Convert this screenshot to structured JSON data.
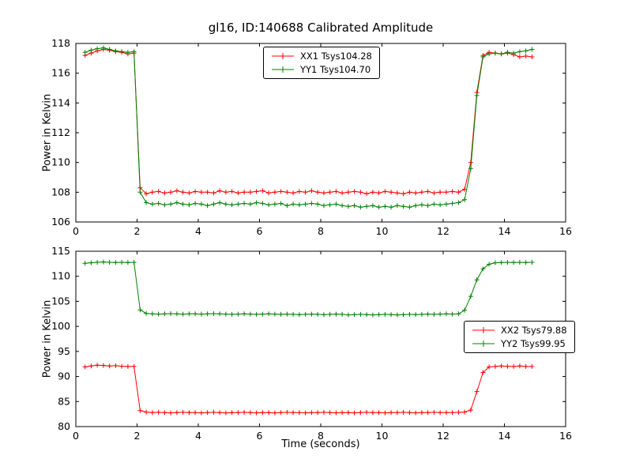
{
  "figure": {
    "title": "gl16, ID:140688 Calibrated Amplitude",
    "background": "#ffffff",
    "axis_color": "#000000"
  },
  "chart_data": [
    {
      "type": "line",
      "title": "",
      "xlabel": "",
      "ylabel": "Power in Kelvin",
      "xlim": [
        0,
        16
      ],
      "ylim": [
        106,
        118
      ],
      "xticks": [
        0,
        2,
        4,
        6,
        8,
        10,
        12,
        14,
        16
      ],
      "yticks": [
        106,
        108,
        110,
        112,
        114,
        116,
        118
      ],
      "grid": false,
      "legend_position": "upper-center",
      "x": [
        0.3,
        0.5,
        0.7,
        0.9,
        1.1,
        1.3,
        1.5,
        1.7,
        1.9,
        2.1,
        2.3,
        2.5,
        2.7,
        2.9,
        3.1,
        3.3,
        3.5,
        3.7,
        3.9,
        4.1,
        4.3,
        4.5,
        4.7,
        4.9,
        5.1,
        5.3,
        5.5,
        5.7,
        5.9,
        6.1,
        6.3,
        6.5,
        6.7,
        6.9,
        7.1,
        7.3,
        7.5,
        7.7,
        7.9,
        8.1,
        8.3,
        8.5,
        8.7,
        8.9,
        9.1,
        9.3,
        9.5,
        9.7,
        9.9,
        10.1,
        10.3,
        10.5,
        10.7,
        10.9,
        11.1,
        11.3,
        11.5,
        11.7,
        11.9,
        12.1,
        12.3,
        12.5,
        12.7,
        12.9,
        13.1,
        13.3,
        13.5,
        13.7,
        13.9,
        14.1,
        14.3,
        14.5,
        14.7,
        14.9
      ],
      "series": [
        {
          "name": "XX1 Tsys104.28",
          "color": "#ff0000",
          "marker": "errorbar-plus",
          "y": [
            117.2,
            117.35,
            117.5,
            117.6,
            117.55,
            117.45,
            117.4,
            117.3,
            117.35,
            108.3,
            107.9,
            108.0,
            108.05,
            107.95,
            108.0,
            108.1,
            108.0,
            107.95,
            108.05,
            108.0,
            108.0,
            107.95,
            108.1,
            108.0,
            108.05,
            107.95,
            108.0,
            108.0,
            108.05,
            108.1,
            107.95,
            108.0,
            108.05,
            108.0,
            107.95,
            108.05,
            108.0,
            108.1,
            108.0,
            107.95,
            108.0,
            108.05,
            107.95,
            108.0,
            108.05,
            108.0,
            107.9,
            108.0,
            107.95,
            108.05,
            108.0,
            107.95,
            107.9,
            108.0,
            107.95,
            108.0,
            108.05,
            107.95,
            108.0,
            108.0,
            108.05,
            108.0,
            108.2,
            110.0,
            114.7,
            117.2,
            117.4,
            117.35,
            117.3,
            117.35,
            117.25,
            117.1,
            117.15,
            117.1
          ]
        },
        {
          "name": "YY1 Tsys104.70",
          "color": "#008000",
          "marker": "errorbar-plus",
          "y": [
            117.4,
            117.55,
            117.65,
            117.7,
            117.6,
            117.5,
            117.45,
            117.4,
            117.45,
            108.0,
            107.3,
            107.2,
            107.25,
            107.15,
            107.2,
            107.3,
            107.2,
            107.15,
            107.25,
            107.2,
            107.1,
            107.2,
            107.3,
            107.2,
            107.15,
            107.2,
            107.25,
            107.2,
            107.3,
            107.25,
            107.15,
            107.2,
            107.25,
            107.1,
            107.2,
            107.15,
            107.2,
            107.25,
            107.2,
            107.1,
            107.15,
            107.2,
            107.1,
            107.05,
            107.1,
            107.0,
            107.05,
            107.1,
            107.0,
            107.05,
            107.0,
            107.1,
            107.05,
            107.0,
            107.1,
            107.15,
            107.1,
            107.2,
            107.15,
            107.2,
            107.25,
            107.3,
            107.5,
            109.6,
            114.5,
            117.1,
            117.3,
            117.35,
            117.3,
            117.4,
            117.35,
            117.45,
            117.5,
            117.6
          ]
        }
      ]
    },
    {
      "type": "line",
      "title": "",
      "xlabel": "Time (seconds)",
      "ylabel": "Power in Kelvin",
      "xlim": [
        0,
        16
      ],
      "ylim": [
        80,
        115
      ],
      "xticks": [
        0,
        2,
        4,
        6,
        8,
        10,
        12,
        14,
        16
      ],
      "yticks": [
        80,
        85,
        90,
        95,
        100,
        105,
        110,
        115
      ],
      "grid": false,
      "legend_position": "middle-right",
      "x": [
        0.3,
        0.5,
        0.7,
        0.9,
        1.1,
        1.3,
        1.5,
        1.7,
        1.9,
        2.1,
        2.3,
        2.5,
        2.7,
        2.9,
        3.1,
        3.3,
        3.5,
        3.7,
        3.9,
        4.1,
        4.3,
        4.5,
        4.7,
        4.9,
        5.1,
        5.3,
        5.5,
        5.7,
        5.9,
        6.1,
        6.3,
        6.5,
        6.7,
        6.9,
        7.1,
        7.3,
        7.5,
        7.7,
        7.9,
        8.1,
        8.3,
        8.5,
        8.7,
        8.9,
        9.1,
        9.3,
        9.5,
        9.7,
        9.9,
        10.1,
        10.3,
        10.5,
        10.7,
        10.9,
        11.1,
        11.3,
        11.5,
        11.7,
        11.9,
        12.1,
        12.3,
        12.5,
        12.7,
        12.9,
        13.1,
        13.3,
        13.5,
        13.7,
        13.9,
        14.1,
        14.3,
        14.5,
        14.7,
        14.9
      ],
      "series": [
        {
          "name": "XX2 Tsys79.88",
          "color": "#ff0000",
          "marker": "errorbar-plus",
          "y": [
            91.9,
            92.1,
            92.25,
            92.2,
            92.1,
            92.15,
            92.05,
            92.0,
            92.0,
            83.2,
            82.9,
            82.8,
            82.85,
            82.8,
            82.75,
            82.8,
            82.85,
            82.8,
            82.8,
            82.75,
            82.8,
            82.85,
            82.8,
            82.75,
            82.8,
            82.8,
            82.85,
            82.8,
            82.75,
            82.8,
            82.8,
            82.75,
            82.8,
            82.85,
            82.8,
            82.8,
            82.75,
            82.8,
            82.8,
            82.85,
            82.8,
            82.75,
            82.8,
            82.8,
            82.75,
            82.8,
            82.85,
            82.8,
            82.8,
            82.75,
            82.8,
            82.8,
            82.85,
            82.8,
            82.75,
            82.8,
            82.8,
            82.85,
            82.8,
            82.8,
            82.8,
            82.85,
            82.9,
            83.3,
            87.0,
            90.8,
            91.9,
            92.0,
            92.1,
            92.05,
            92.0,
            92.1,
            92.0,
            92.0
          ]
        },
        {
          "name": "YY2 Tsys99.95",
          "color": "#008000",
          "marker": "errorbar-plus",
          "y": [
            112.6,
            112.7,
            112.8,
            112.85,
            112.8,
            112.75,
            112.8,
            112.75,
            112.8,
            103.3,
            102.6,
            102.5,
            102.45,
            102.5,
            102.55,
            102.5,
            102.45,
            102.5,
            102.5,
            102.45,
            102.5,
            102.55,
            102.5,
            102.45,
            102.4,
            102.45,
            102.5,
            102.45,
            102.4,
            102.45,
            102.5,
            102.45,
            102.4,
            102.45,
            102.4,
            102.35,
            102.4,
            102.45,
            102.4,
            102.35,
            102.4,
            102.45,
            102.4,
            102.3,
            102.35,
            102.4,
            102.35,
            102.3,
            102.35,
            102.4,
            102.35,
            102.3,
            102.35,
            102.4,
            102.35,
            102.4,
            102.45,
            102.4,
            102.45,
            102.5,
            102.45,
            102.5,
            103.2,
            106.0,
            109.3,
            111.5,
            112.4,
            112.7,
            112.75,
            112.8,
            112.75,
            112.8,
            112.75,
            112.8
          ]
        }
      ]
    }
  ]
}
